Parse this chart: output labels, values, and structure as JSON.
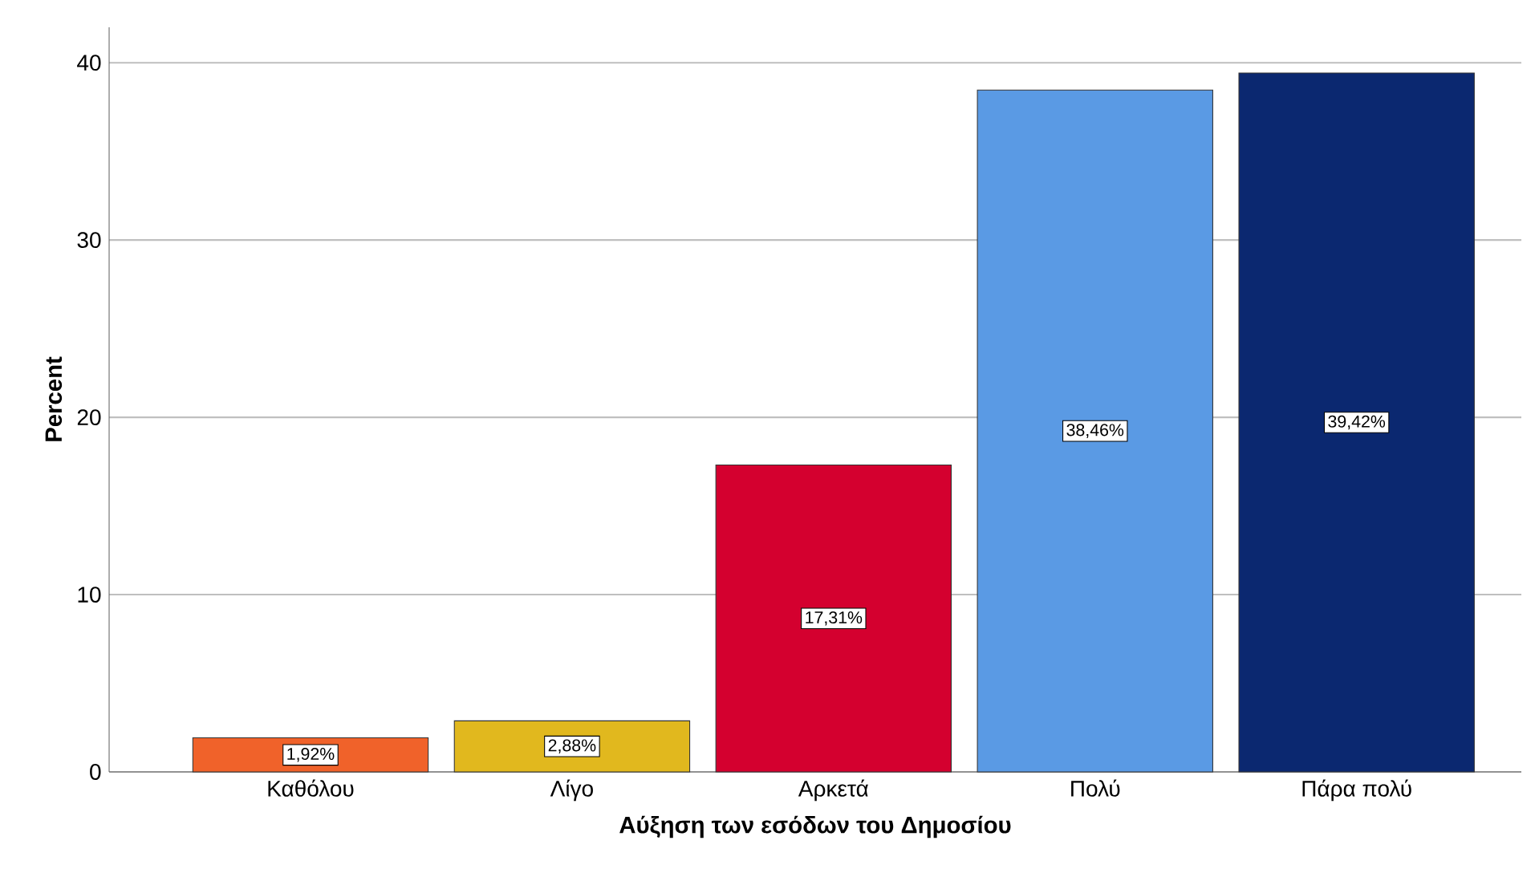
{
  "chart_data": {
    "type": "bar",
    "xlabel": "Αύξηση των εσόδων του Δημοσίου",
    "ylabel": "Percent",
    "categories": [
      "Καθόλου",
      "Λίγο",
      "Αρκετά",
      "Πολύ",
      "Πάρα πολύ"
    ],
    "values": [
      1.92,
      2.88,
      17.31,
      38.46,
      39.42
    ],
    "colors": [
      "#f0622a",
      "#e1b81e",
      "#d4002f",
      "#5a9ae4",
      "#0b2870"
    ],
    "value_labels": [
      "1,92%",
      "2,88%",
      "17,31%",
      "38,46%",
      "39,42%"
    ],
    "ylim": [
      0,
      42
    ],
    "yticks": [
      0,
      10,
      20,
      30,
      40
    ],
    "grid": "y"
  }
}
